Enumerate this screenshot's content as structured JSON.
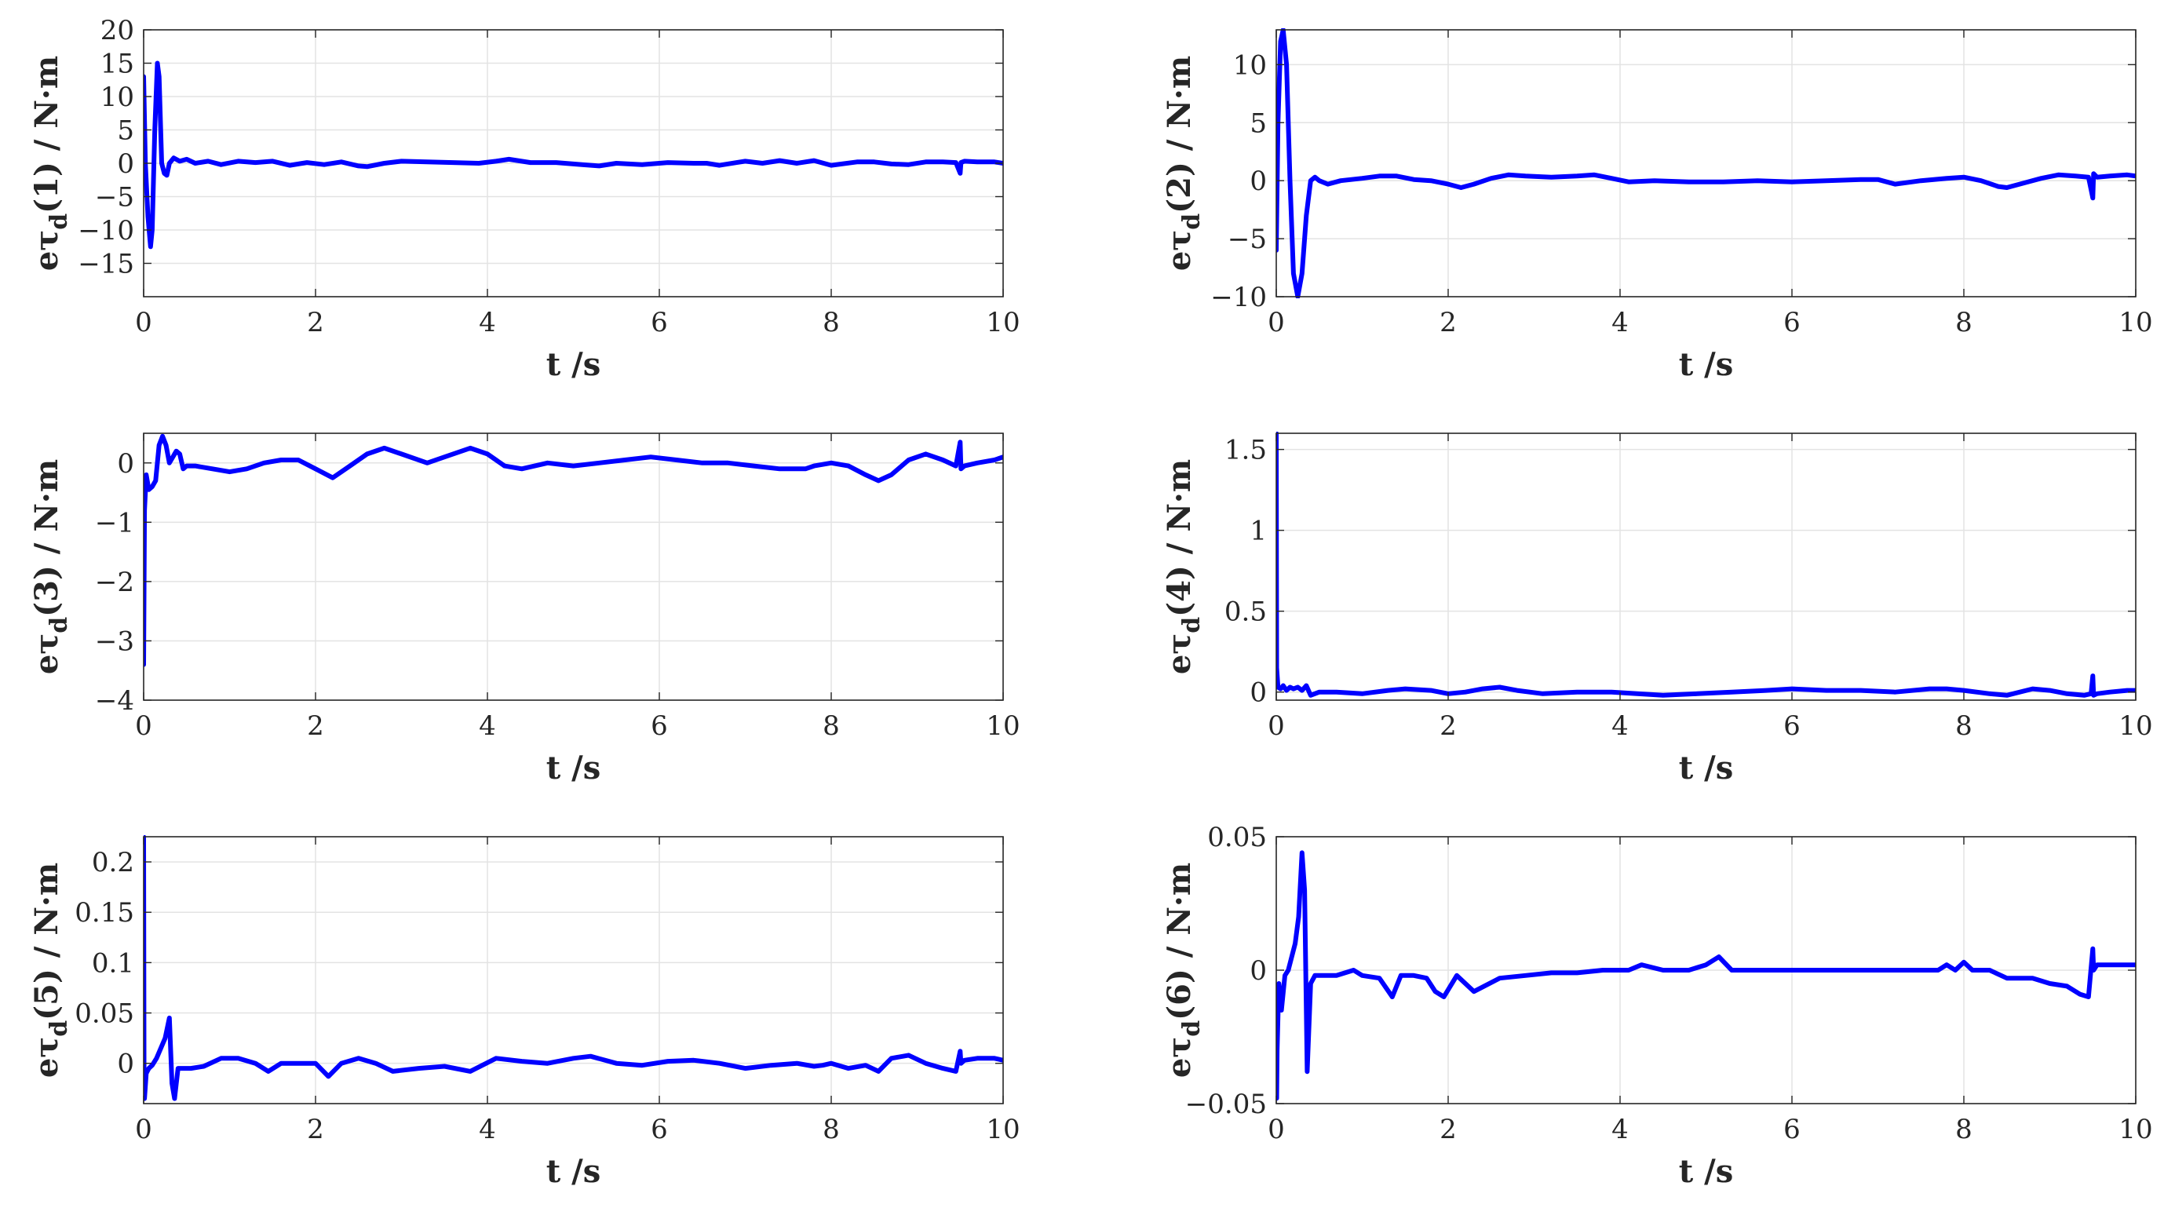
{
  "colors": {
    "series": "#0000ff",
    "axis": "#262626",
    "grid": "#e3e3e3"
  },
  "chart_data": [
    {
      "type": "line",
      "title": "",
      "xlabel": "t /s",
      "ylabel": "eτd(1) / N·m",
      "ylabel_parts": {
        "pre": "eτ",
        "sub": "d",
        "post": "(1) / N·m"
      },
      "xlim": [
        0,
        10
      ],
      "ylim": [
        -20,
        20
      ],
      "xticks": [
        0,
        2,
        4,
        6,
        8,
        10
      ],
      "yticks": [
        -15,
        -10,
        -5,
        0,
        5,
        10,
        15,
        20
      ],
      "ytick_labels": [
        "−15",
        "−10",
        "−5",
        "0",
        "5",
        "10",
        "15",
        "20"
      ],
      "grid": true,
      "series": [
        {
          "name": "eτd(1)",
          "x": [
            0,
            0.02,
            0.05,
            0.08,
            0.1,
            0.13,
            0.16,
            0.18,
            0.21,
            0.24,
            0.27,
            0.3,
            0.35,
            0.42,
            0.5,
            0.6,
            0.75,
            0.9,
            1.1,
            1.3,
            1.5,
            1.7,
            1.9,
            2.1,
            2.3,
            2.5,
            2.6,
            2.8,
            3.0,
            3.3,
            3.6,
            3.9,
            4.1,
            4.25,
            4.5,
            4.8,
            5.1,
            5.3,
            5.5,
            5.8,
            6.1,
            6.4,
            6.55,
            6.7,
            6.9,
            7.0,
            7.2,
            7.4,
            7.6,
            7.8,
            8.0,
            8.3,
            8.5,
            8.7,
            8.9,
            9.1,
            9.3,
            9.45,
            9.5,
            9.51,
            9.55,
            9.7,
            9.9,
            10.0
          ],
          "values": [
            13,
            0,
            -8,
            -12.5,
            -10,
            5,
            15,
            13,
            0,
            -1.5,
            -1.8,
            0,
            0.8,
            0.3,
            0.6,
            0,
            0.3,
            -0.2,
            0.3,
            0.1,
            0.3,
            -0.3,
            0.1,
            -0.2,
            0.2,
            -0.4,
            -0.5,
            0,
            0.3,
            0.2,
            0.1,
            0,
            0.3,
            0.6,
            0.1,
            0.1,
            -0.2,
            -0.4,
            0,
            -0.2,
            0.1,
            0,
            0,
            -0.3,
            0.1,
            0.3,
            0,
            0.4,
            0,
            0.4,
            -0.3,
            0.2,
            0.2,
            -0.1,
            -0.2,
            0.2,
            0.2,
            0.1,
            -1.5,
            0.1,
            0.3,
            0.2,
            0.2,
            0
          ]
        }
      ]
    },
    {
      "type": "line",
      "title": "",
      "xlabel": "t /s",
      "ylabel": "eτd(2) / N·m",
      "ylabel_parts": {
        "pre": "eτ",
        "sub": "d",
        "post": "(2) / N·m"
      },
      "xlim": [
        0,
        10
      ],
      "ylim": [
        -10,
        13
      ],
      "xticks": [
        0,
        2,
        4,
        6,
        8,
        10
      ],
      "yticks": [
        -10,
        -5,
        0,
        5,
        10
      ],
      "ytick_labels": [
        "−10",
        "−5",
        "0",
        "5",
        "10"
      ],
      "grid": true,
      "series": [
        {
          "name": "eτd(2)",
          "x": [
            0,
            0.02,
            0.05,
            0.08,
            0.12,
            0.16,
            0.2,
            0.25,
            0.3,
            0.35,
            0.4,
            0.45,
            0.5,
            0.6,
            0.75,
            1.0,
            1.2,
            1.4,
            1.6,
            1.8,
            2.0,
            2.15,
            2.3,
            2.5,
            2.7,
            2.9,
            3.2,
            3.5,
            3.7,
            3.9,
            4.1,
            4.4,
            4.8,
            5.2,
            5.6,
            6.0,
            6.4,
            6.8,
            7.0,
            7.2,
            7.5,
            7.8,
            8.0,
            8.2,
            8.4,
            8.5,
            8.7,
            8.9,
            9.1,
            9.3,
            9.45,
            9.5,
            9.51,
            9.55,
            9.7,
            9.9,
            10.0
          ],
          "values": [
            -6,
            5,
            12,
            13,
            10,
            0,
            -8,
            -10,
            -8,
            -3,
            0,
            0.3,
            0,
            -0.3,
            0,
            0.2,
            0.4,
            0.4,
            0.1,
            0,
            -0.3,
            -0.6,
            -0.3,
            0.2,
            0.5,
            0.4,
            0.3,
            0.4,
            0.5,
            0.2,
            -0.1,
            0,
            -0.1,
            -0.1,
            0,
            -0.1,
            0,
            0.1,
            0.1,
            -0.3,
            0,
            0.2,
            0.3,
            0,
            -0.5,
            -0.6,
            -0.2,
            0.2,
            0.5,
            0.4,
            0.3,
            -1.5,
            0.6,
            0.3,
            0.4,
            0.5,
            0.4
          ]
        }
      ]
    },
    {
      "type": "line",
      "title": "",
      "xlabel": "t /s",
      "ylabel": "eτd(3) / N·m",
      "ylabel_parts": {
        "pre": "eτ",
        "sub": "d",
        "post": "(3) / N·m"
      },
      "xlim": [
        0,
        10
      ],
      "ylim": [
        -4,
        0.5
      ],
      "xticks": [
        0,
        2,
        4,
        6,
        8,
        10
      ],
      "yticks": [
        -4,
        -3,
        -2,
        -1,
        0
      ],
      "ytick_labels": [
        "−4",
        "−3",
        "−2",
        "−1",
        "0"
      ],
      "grid": true,
      "series": [
        {
          "name": "eτd(3)",
          "x": [
            0,
            0.01,
            0.03,
            0.06,
            0.1,
            0.14,
            0.18,
            0.22,
            0.26,
            0.3,
            0.34,
            0.38,
            0.42,
            0.46,
            0.5,
            0.6,
            0.8,
            1.0,
            1.2,
            1.4,
            1.6,
            1.8,
            2.0,
            2.2,
            2.4,
            2.6,
            2.8,
            3.0,
            3.3,
            3.5,
            3.8,
            4.0,
            4.2,
            4.4,
            4.7,
            5.0,
            5.3,
            5.6,
            5.9,
            6.2,
            6.5,
            6.8,
            7.1,
            7.4,
            7.7,
            7.8,
            8.0,
            8.2,
            8.4,
            8.55,
            8.7,
            8.9,
            9.1,
            9.3,
            9.45,
            9.5,
            9.51,
            9.55,
            9.7,
            9.9,
            10.0
          ],
          "values": [
            -3.4,
            -0.8,
            -0.2,
            -0.45,
            -0.4,
            -0.3,
            0.3,
            0.45,
            0.3,
            0,
            0.1,
            0.2,
            0.15,
            -0.1,
            -0.05,
            -0.05,
            -0.1,
            -0.15,
            -0.1,
            0,
            0.05,
            0.05,
            -0.1,
            -0.25,
            -0.05,
            0.15,
            0.25,
            0.15,
            0,
            0.1,
            0.25,
            0.15,
            -0.05,
            -0.1,
            0,
            -0.05,
            0,
            0.05,
            0.1,
            0.05,
            0,
            0,
            -0.05,
            -0.1,
            -0.1,
            -0.05,
            0,
            -0.05,
            -0.2,
            -0.3,
            -0.2,
            0.05,
            0.15,
            0.05,
            -0.05,
            0.35,
            -0.1,
            -0.05,
            0,
            0.05,
            0.1
          ]
        }
      ]
    },
    {
      "type": "line",
      "title": "",
      "xlabel": "t /s",
      "ylabel": "eτd(4) / N·m",
      "ylabel_parts": {
        "pre": "eτ",
        "sub": "d",
        "post": "(4) / N·m"
      },
      "xlim": [
        0,
        10
      ],
      "ylim": [
        -0.05,
        1.6
      ],
      "xticks": [
        0,
        2,
        4,
        6,
        8,
        10
      ],
      "yticks": [
        0,
        0.5,
        1,
        1.5
      ],
      "ytick_labels": [
        "0",
        "0.5",
        "1",
        "1.5"
      ],
      "grid": true,
      "series": [
        {
          "name": "eτd(4)",
          "x": [
            0,
            0.005,
            0.02,
            0.05,
            0.08,
            0.12,
            0.16,
            0.2,
            0.25,
            0.3,
            0.35,
            0.4,
            0.5,
            0.7,
            1.0,
            1.3,
            1.5,
            1.8,
            2.0,
            2.2,
            2.4,
            2.6,
            2.8,
            3.1,
            3.5,
            3.9,
            4.2,
            4.5,
            4.9,
            5.3,
            5.7,
            6.0,
            6.4,
            6.8,
            7.2,
            7.6,
            7.8,
            8.0,
            8.3,
            8.5,
            8.8,
            9.0,
            9.2,
            9.4,
            9.48,
            9.5,
            9.51,
            9.55,
            9.7,
            9.9,
            10.0
          ],
          "values": [
            1.6,
            0.15,
            0.03,
            0.02,
            0.04,
            0.01,
            0.03,
            0.02,
            0.03,
            0.01,
            0.04,
            -0.02,
            0,
            0,
            -0.01,
            0.01,
            0.02,
            0.01,
            -0.01,
            0,
            0.02,
            0.03,
            0.01,
            -0.01,
            0,
            0,
            -0.01,
            -0.02,
            -0.01,
            0,
            0.01,
            0.02,
            0.01,
            0.01,
            0,
            0.02,
            0.02,
            0.01,
            -0.01,
            -0.02,
            0.02,
            0.01,
            -0.01,
            -0.02,
            -0.01,
            0.1,
            -0.02,
            -0.01,
            0,
            0.01,
            0.01
          ]
        }
      ]
    },
    {
      "type": "line",
      "title": "",
      "xlabel": "t /s",
      "ylabel": "eτd(5) / N·m",
      "ylabel_parts": {
        "pre": "eτ",
        "sub": "d",
        "post": "(5) / N·m"
      },
      "xlim": [
        0,
        10
      ],
      "ylim": [
        -0.04,
        0.225
      ],
      "xticks": [
        0,
        2,
        4,
        6,
        8,
        10
      ],
      "yticks": [
        0,
        0.05,
        0.1,
        0.15,
        0.2
      ],
      "ytick_labels": [
        "0",
        "0.05",
        "0.1",
        "0.15",
        "0.2"
      ],
      "grid": true,
      "series": [
        {
          "name": "eτd(5)",
          "x": [
            0,
            0.005,
            0.01,
            0.03,
            0.06,
            0.1,
            0.15,
            0.2,
            0.25,
            0.3,
            0.33,
            0.36,
            0.4,
            0.45,
            0.55,
            0.7,
            0.9,
            1.1,
            1.3,
            1.45,
            1.6,
            1.8,
            2.0,
            2.15,
            2.3,
            2.5,
            2.7,
            2.9,
            3.2,
            3.5,
            3.8,
            4.1,
            4.4,
            4.7,
            5.0,
            5.2,
            5.5,
            5.8,
            6.1,
            6.4,
            6.7,
            7.0,
            7.3,
            7.6,
            7.8,
            7.9,
            8.0,
            8.2,
            8.4,
            8.55,
            8.7,
            8.9,
            9.1,
            9.3,
            9.45,
            9.5,
            9.51,
            9.55,
            9.7,
            9.9,
            10.0
          ],
          "values": [
            0.225,
            0.0,
            -0.035,
            -0.01,
            -0.005,
            -0.002,
            0.005,
            0.015,
            0.025,
            0.045,
            -0.02,
            -0.035,
            -0.005,
            -0.005,
            -0.005,
            -0.003,
            0.005,
            0.005,
            0.0,
            -0.008,
            0.0,
            0.0,
            0.0,
            -0.013,
            0.0,
            0.005,
            0.0,
            -0.008,
            -0.005,
            -0.003,
            -0.008,
            0.005,
            0.002,
            0.0,
            0.005,
            0.007,
            0.0,
            -0.002,
            0.002,
            0.003,
            0.0,
            -0.005,
            -0.002,
            0.0,
            -0.003,
            -0.002,
            0.0,
            -0.005,
            -0.002,
            -0.008,
            0.005,
            0.008,
            0.0,
            -0.005,
            -0.008,
            0.012,
            0.0,
            0.003,
            0.005,
            0.005,
            0.003
          ]
        }
      ]
    },
    {
      "type": "line",
      "title": "",
      "xlabel": "t /s",
      "ylabel": "eτd(6) / N·m",
      "ylabel_parts": {
        "pre": "eτ",
        "sub": "d",
        "post": "(6) / N·m"
      },
      "xlim": [
        0,
        10
      ],
      "ylim": [
        -0.05,
        0.05
      ],
      "xticks": [
        0,
        2,
        4,
        6,
        8,
        10
      ],
      "yticks": [
        -0.05,
        0,
        0.05
      ],
      "ytick_labels": [
        "−0.05",
        "0",
        "0.05"
      ],
      "grid": true,
      "series": [
        {
          "name": "eτd(6)",
          "x": [
            0,
            0.005,
            0.01,
            0.03,
            0.06,
            0.1,
            0.14,
            0.18,
            0.22,
            0.26,
            0.3,
            0.33,
            0.36,
            0.4,
            0.45,
            0.55,
            0.7,
            0.9,
            1.0,
            1.2,
            1.35,
            1.45,
            1.6,
            1.75,
            1.85,
            1.95,
            2.1,
            2.3,
            2.6,
            2.9,
            3.2,
            3.5,
            3.8,
            4.1,
            4.25,
            4.5,
            4.8,
            5.0,
            5.15,
            5.3,
            5.6,
            6.0,
            6.5,
            7.0,
            7.5,
            7.7,
            7.8,
            7.9,
            8.0,
            8.1,
            8.3,
            8.5,
            8.8,
            9.0,
            9.2,
            9.35,
            9.45,
            9.5,
            9.51,
            9.55,
            9.7,
            9.9,
            10.0
          ],
          "values": [
            -0.01,
            -0.048,
            -0.03,
            -0.005,
            -0.015,
            -0.002,
            0.0,
            0.005,
            0.01,
            0.02,
            0.044,
            0.03,
            -0.038,
            -0.005,
            -0.002,
            -0.002,
            -0.002,
            0.0,
            -0.002,
            -0.003,
            -0.01,
            -0.002,
            -0.002,
            -0.003,
            -0.008,
            -0.01,
            -0.002,
            -0.008,
            -0.003,
            -0.002,
            -0.001,
            -0.001,
            0.0,
            0.0,
            0.002,
            0.0,
            0.0,
            0.002,
            0.005,
            0.0,
            0.0,
            0.0,
            0.0,
            0.0,
            0.0,
            0.0,
            0.002,
            0.0,
            0.003,
            0.0,
            0.0,
            -0.003,
            -0.003,
            -0.005,
            -0.006,
            -0.009,
            -0.01,
            0.008,
            0.0,
            0.002,
            0.002,
            0.002,
            0.002
          ]
        }
      ]
    }
  ]
}
